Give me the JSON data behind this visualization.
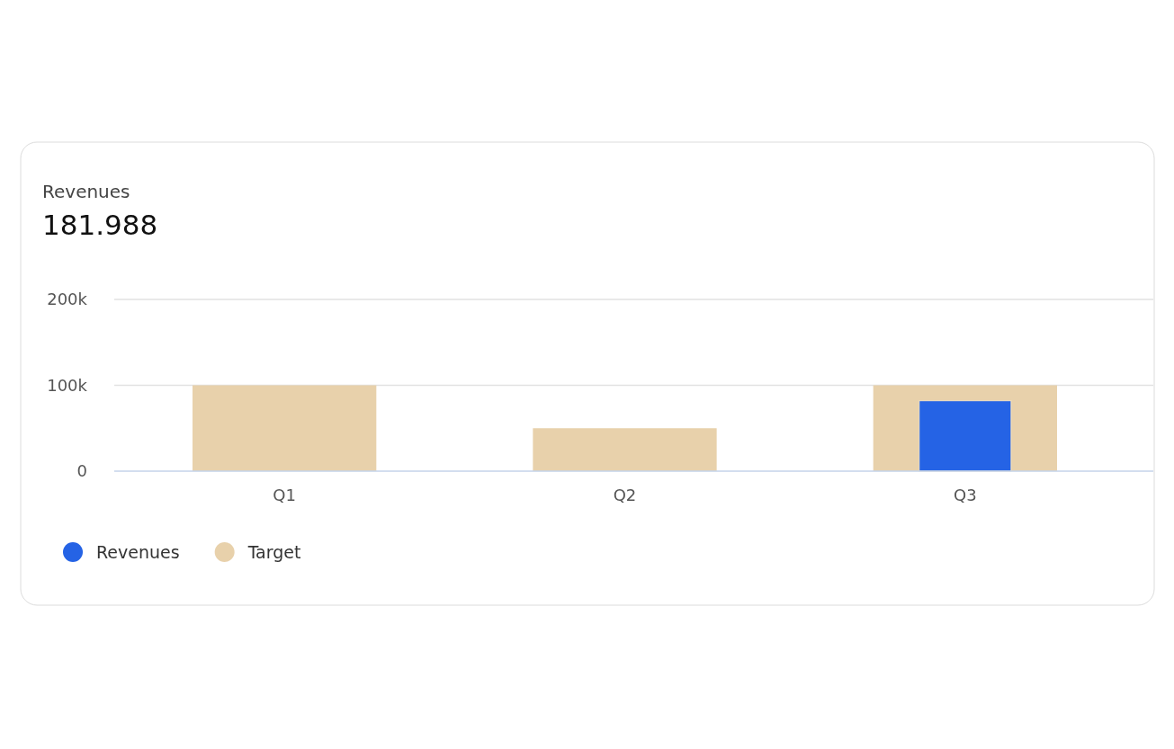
{
  "chart_data": {
    "type": "bar",
    "title": "Revenues",
    "subtitle": "181.988",
    "categories": [
      "Q1",
      "Q2",
      "Q3"
    ],
    "series": [
      {
        "name": "Revenues",
        "color": "#2563e5",
        "values": [
          null,
          null,
          82000
        ]
      },
      {
        "name": "Target",
        "color": "#e8d1ab",
        "values": [
          100000,
          50000,
          100000
        ]
      }
    ],
    "ylim": [
      0,
      200000
    ],
    "yticks": [
      {
        "value": 0,
        "label": "0"
      },
      {
        "value": 100000,
        "label": "100k"
      },
      {
        "value": 200000,
        "label": "200k"
      }
    ],
    "grid": "y",
    "legend": "bottom left"
  }
}
